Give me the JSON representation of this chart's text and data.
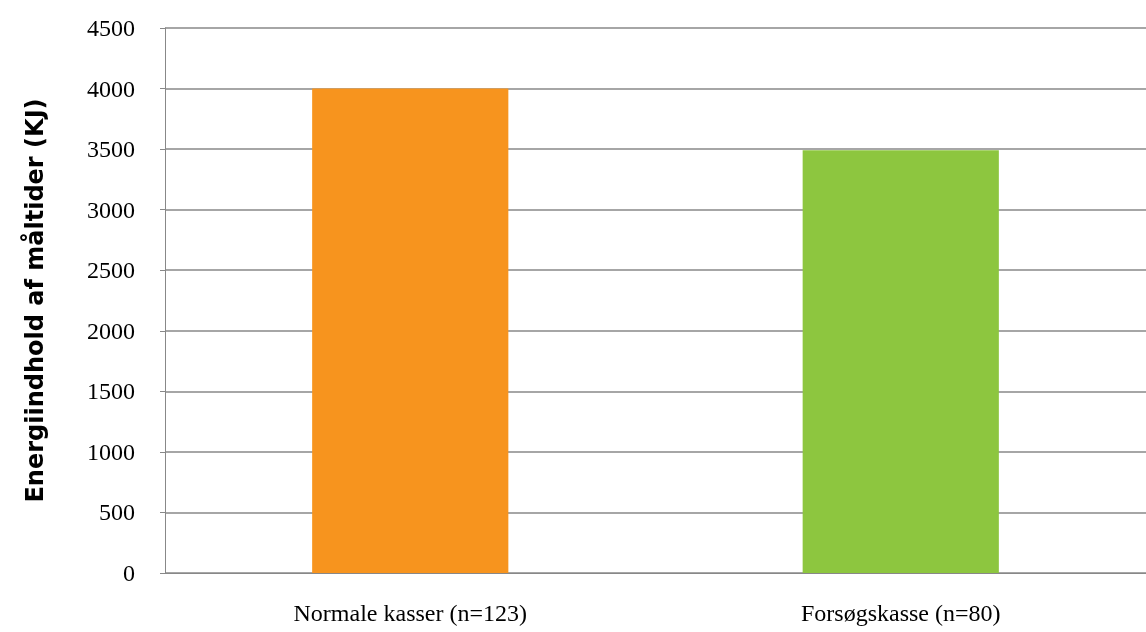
{
  "chart_data": {
    "type": "bar",
    "ylabel": "Energiindhold af måltider (KJ)",
    "categories": [
      "Normale kasser (n=123)",
      "Forsøgskasse (n=80)"
    ],
    "values": [
      4000,
      3490
    ],
    "colors": [
      "#f7941e",
      "#8dc63f"
    ],
    "ylim": [
      0,
      4500
    ],
    "yticks": [
      0,
      500,
      1000,
      1500,
      2000,
      2500,
      3000,
      3500,
      4000,
      4500
    ],
    "grid": "y"
  }
}
